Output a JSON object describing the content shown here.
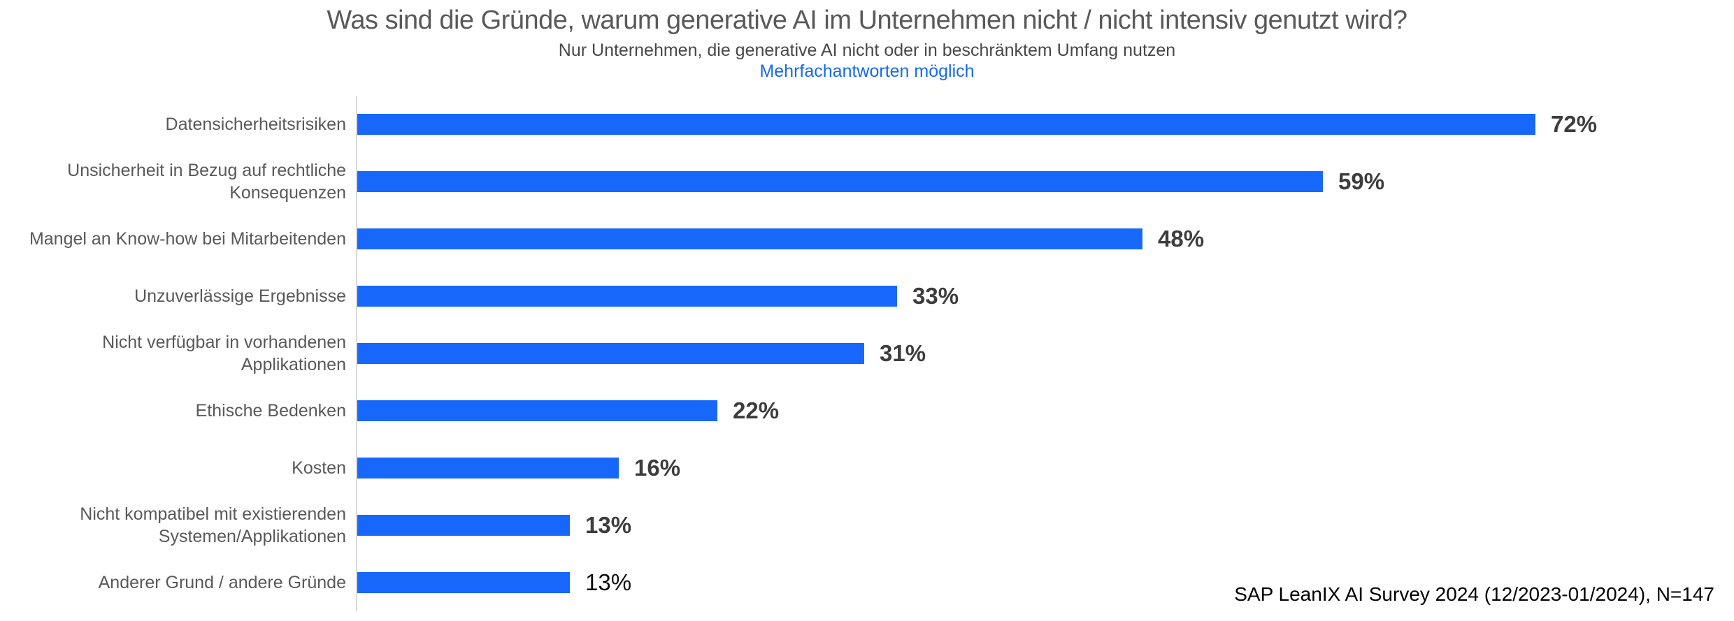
{
  "colors": {
    "bar_blue": "#1768fa",
    "note_blue": "#1669f2",
    "axis_gray": "#d9d9d9",
    "title_gray": "#595959",
    "value_label_gray": "#3d3d3d"
  },
  "chart_data": {
    "type": "bar",
    "orientation": "horizontal",
    "title": "Was sind die Gründe, warum generative AI im Unternehmen nicht / nicht intensiv genutzt wird?",
    "subtitle": "Nur Unternehmen, die generative AI nicht oder in beschränktem Umfang nutzen",
    "note": "Mehrfachantworten möglich",
    "source": "SAP LeanIX AI Survey 2024 (12/2023-01/2024), N=147",
    "categories": [
      "Datensicherheitsrisiken",
      "Unsicherheit in Bezug auf rechtliche\nKonsequenzen",
      "Mangel an Know-how bei Mitarbeitenden",
      "Unzuverlässige Ergebnisse",
      "Nicht verfügbar in vorhandenen\nApplikationen",
      "Ethische Bedenken",
      "Kosten",
      "Nicht kompatibel mit existierenden\nSystemen/Applikationen",
      "Anderer Grund / andere Gründe"
    ],
    "values": [
      72,
      59,
      48,
      33,
      31,
      22,
      16,
      13,
      13
    ],
    "value_labels": [
      "72%",
      "59%",
      "48%",
      "33%",
      "31%",
      "22%",
      "16%",
      "13%",
      "13%"
    ],
    "value_label_bold": [
      true,
      true,
      true,
      true,
      true,
      true,
      true,
      true,
      false
    ],
    "xlabel": "",
    "ylabel": "",
    "xlim": [
      0,
      84
    ],
    "grid": false,
    "legend": false,
    "value_labels_shown": true
  }
}
